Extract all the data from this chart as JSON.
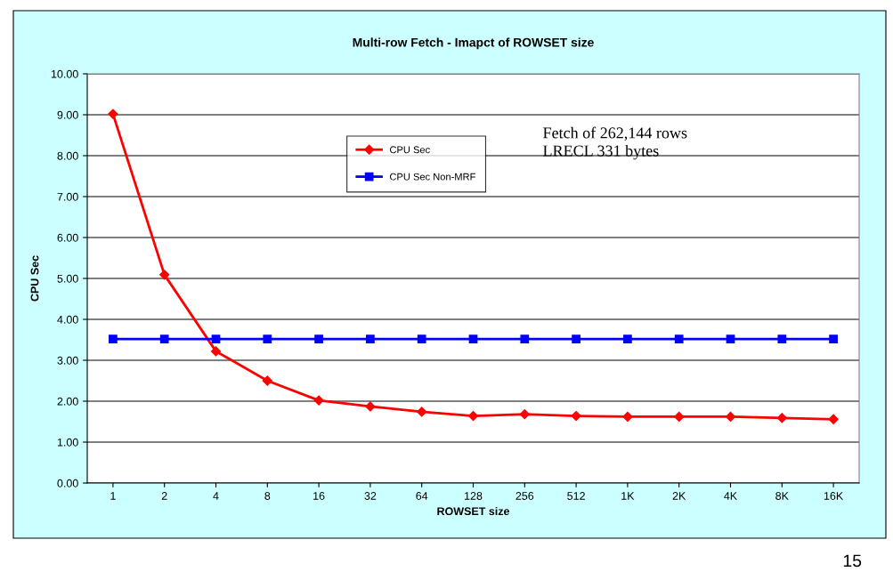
{
  "chart_data": {
    "type": "line",
    "title": "Multi-row Fetch - Imapct of ROWSET size",
    "xlabel": "ROWSET size",
    "ylabel": "CPU Sec",
    "categories": [
      "1",
      "2",
      "4",
      "8",
      "16",
      "32",
      "64",
      "128",
      "256",
      "512",
      "1K",
      "2K",
      "4K",
      "8K",
      "16K"
    ],
    "series": [
      {
        "name": "CPU Sec",
        "color": "#ff0000",
        "marker": "diamond",
        "values": [
          9.02,
          5.09,
          3.22,
          2.5,
          2.02,
          1.87,
          1.74,
          1.64,
          1.68,
          1.64,
          1.62,
          1.62,
          1.62,
          1.59,
          1.56
        ]
      },
      {
        "name": "CPU Sec Non-MRF",
        "color": "#0000ff",
        "marker": "square",
        "values": [
          3.52,
          3.52,
          3.52,
          3.52,
          3.52,
          3.52,
          3.52,
          3.52,
          3.52,
          3.52,
          3.52,
          3.52,
          3.52,
          3.52,
          3.52
        ]
      }
    ],
    "ylim": [
      0,
      10
    ],
    "yticks": [
      {
        "value": 0,
        "label": "0.00"
      },
      {
        "value": 1,
        "label": "1.00"
      },
      {
        "value": 2,
        "label": "2.00"
      },
      {
        "value": 3,
        "label": "3.00"
      },
      {
        "value": 4,
        "label": "4.00"
      },
      {
        "value": 5,
        "label": "5.00"
      },
      {
        "value": 6,
        "label": "6.00"
      },
      {
        "value": 7,
        "label": "7.00"
      },
      {
        "value": 8,
        "label": "8.00"
      },
      {
        "value": 9,
        "label": "9.00"
      },
      {
        "value": 10,
        "label": "10.00"
      }
    ],
    "grid": "y",
    "legend": "top",
    "line_style": "solid",
    "annotations": [
      "Fetch of 262,144 rows\nLRECL 331 bytes",
      "15"
    ]
  }
}
